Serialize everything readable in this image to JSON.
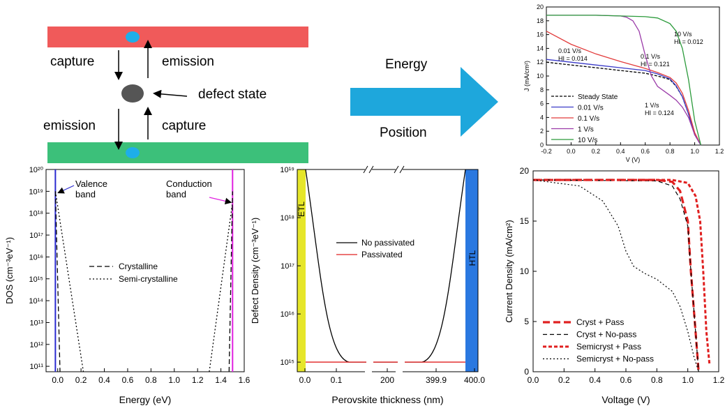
{
  "schematic": {
    "capture_top": "capture",
    "emission_top": "emission",
    "defect_label": "defect state",
    "emission_bottom": "emission",
    "capture_bottom": "capture",
    "colors": {
      "upper_band": "#f05a5a",
      "lower_band": "#3cc07a",
      "carrier": "#1eaee8",
      "defect": "#555555"
    }
  },
  "arrow_panel": {
    "label_top": "Energy",
    "label_bottom": "Position",
    "color": "#1ea7dc"
  },
  "chart_data": [
    {
      "type": "line",
      "xlabel": "V (V)",
      "ylabel": "J (mA/cm²)",
      "xlim": [
        -0.2,
        1.2
      ],
      "ylim": [
        0,
        20
      ],
      "xticks": [
        "-0.2",
        "0.0",
        "0.2",
        "0.4",
        "0.6",
        "0.8",
        "1.0",
        "1.2"
      ],
      "yticks": [
        "0",
        "2",
        "4",
        "6",
        "8",
        "10",
        "12",
        "14",
        "16",
        "18",
        "20"
      ],
      "legend": [
        "Steady State",
        "0.01 V/s",
        "0.1 V/s",
        "1 V/s",
        "10 V/s"
      ],
      "annotations": [
        {
          "rate": "0.01 V/s",
          "hi": "HI = 0.014",
          "color": "#3a3ac8"
        },
        {
          "rate": "0.1 V/s",
          "hi": "HI = 0.121",
          "color": "#e23b3b"
        },
        {
          "rate": "1 V/s",
          "hi": "HI = 0.124",
          "color": "#9a3aa8"
        },
        {
          "rate": "10 V/s",
          "hi": "HI = 0.012",
          "color": "#2a9a3a"
        }
      ],
      "series": [
        {
          "name": "Steady State",
          "color": "#000000",
          "x": [
            -0.2,
            0.0,
            0.2,
            0.4,
            0.6,
            0.7,
            0.8,
            0.85,
            0.9,
            0.95,
            1.0,
            1.05
          ],
          "y": [
            12.0,
            11.6,
            11.2,
            10.8,
            10.4,
            10.0,
            9.5,
            8.5,
            7.0,
            4.5,
            1.5,
            0.0
          ]
        },
        {
          "name": "0.01 V/s",
          "color": "#3a3ac8",
          "x": [
            -0.2,
            0.0,
            0.2,
            0.4,
            0.6,
            0.7,
            0.8,
            0.85,
            0.9,
            0.95,
            1.0,
            1.05
          ],
          "y": [
            12.4,
            12.0,
            11.6,
            11.2,
            10.8,
            10.3,
            9.6,
            8.6,
            7.0,
            4.5,
            1.5,
            0.0
          ]
        },
        {
          "name": "0.1 V/s",
          "color": "#e23b3b",
          "x": [
            -0.2,
            0.0,
            0.2,
            0.4,
            0.6,
            0.7,
            0.8,
            0.85,
            0.9,
            0.95,
            1.0,
            1.05
          ],
          "y": [
            16.5,
            14.6,
            13.2,
            12.1,
            11.1,
            10.5,
            9.8,
            9.0,
            7.5,
            5.0,
            1.8,
            0.0
          ]
        },
        {
          "name": "1 V/s",
          "color": "#9a3aa8",
          "x": [
            -0.2,
            0.0,
            0.2,
            0.4,
            0.45,
            0.5,
            0.55,
            0.6,
            0.65,
            0.7,
            0.8,
            0.85,
            0.9,
            0.95,
            1.0,
            1.05
          ],
          "y": [
            18.8,
            18.8,
            18.8,
            18.7,
            18.5,
            18.0,
            16.5,
            13.0,
            10.0,
            8.5,
            7.2,
            6.5,
            5.5,
            4.0,
            1.5,
            0.0
          ]
        },
        {
          "name": "10 V/s",
          "color": "#2a9a3a",
          "x": [
            -0.2,
            0.0,
            0.2,
            0.4,
            0.6,
            0.7,
            0.8,
            0.85,
            0.9,
            0.95,
            1.0,
            1.05
          ],
          "y": [
            18.8,
            18.8,
            18.8,
            18.7,
            18.6,
            18.4,
            17.6,
            16.5,
            14.0,
            9.5,
            3.5,
            0.0
          ]
        }
      ]
    },
    {
      "type": "line",
      "xlabel": "Energy (eV)",
      "ylabel": "DOS (cm⁻³eV⁻¹)",
      "xlim": [
        -0.1,
        1.6
      ],
      "ylim_log10": [
        10.75,
        20
      ],
      "xticks": [
        "0.0",
        "0.2",
        "0.4",
        "0.6",
        "0.8",
        "1.0",
        "1.2",
        "1.4",
        "1.6"
      ],
      "yticks": [
        "10¹¹",
        "10¹²",
        "10¹³",
        "10¹⁴",
        "10¹⁵",
        "10¹⁶",
        "10¹⁷",
        "10¹⁸",
        "10¹⁹",
        "10²⁰"
      ],
      "band_labels": [
        {
          "text": "Valence band",
          "color": "#2a2ad0",
          "edge_ev": -0.02
        },
        {
          "text": "Conduction band",
          "color": "#e020e0",
          "edge_ev": 1.5
        }
      ],
      "legend": [
        "Crystalline",
        "Semi-crystalline"
      ],
      "series": [
        {
          "name": "Crystalline",
          "x": [
            -0.02,
            0.02
          ],
          "log10_y": [
            19.0,
            10.75
          ],
          "x2": [
            1.47,
            1.5
          ],
          "log10_y2": [
            10.75,
            19.0
          ]
        },
        {
          "name": "Semi-crystalline",
          "x": [
            -0.02,
            0.22
          ],
          "log10_y": [
            19.0,
            10.75
          ],
          "x2": [
            1.3,
            1.5
          ],
          "log10_y2": [
            10.75,
            18.5
          ]
        }
      ]
    },
    {
      "type": "line",
      "xlabel": "Perovskite thickness (nm)",
      "ylabel": "Defect Density (cm⁻³eV⁻¹)",
      "ylim_log10": [
        14.8,
        19
      ],
      "xticks": [
        "0.0",
        "0.1",
        "200",
        "399.9",
        "400.0"
      ],
      "yticks": [
        "10¹⁵",
        "10¹⁶",
        "10¹⁷",
        "10¹⁸",
        "10¹⁹"
      ],
      "layers": [
        {
          "label": "ETL",
          "color": "#e6e62a"
        },
        {
          "label": "HTL",
          "color": "#2a78e0"
        }
      ],
      "legend": [
        "No passivated",
        "Passivated"
      ],
      "series": [
        {
          "name": "No passivated",
          "color": "#000000",
          "peak_log10": 19,
          "floor_log10": 15
        },
        {
          "name": "Passivated",
          "color": "#e02020",
          "floor_log10": 15
        }
      ]
    },
    {
      "type": "line",
      "xlabel": "Voltage (V)",
      "ylabel": "Current Density (mA/cm²)",
      "xlim": [
        0,
        1.2
      ],
      "ylim": [
        0,
        20
      ],
      "xticks": [
        "0.0",
        "0.2",
        "0.4",
        "0.6",
        "0.8",
        "1.0",
        "1.2"
      ],
      "yticks": [
        "0",
        "5",
        "10",
        "15",
        "20"
      ],
      "legend": [
        "Cryst + Pass",
        "Cryst + No-pass",
        "Semicryst + Pass",
        "Semicryst + No-pass"
      ],
      "series": [
        {
          "name": "Cryst + Pass",
          "color": "#e02020",
          "x": [
            0,
            0.8,
            0.9,
            0.95,
            1.0,
            1.02,
            1.05,
            1.07
          ],
          "y": [
            19.1,
            19.1,
            18.9,
            18.0,
            15.0,
            10.0,
            4.0,
            0.0
          ]
        },
        {
          "name": "Cryst + No-pass",
          "color": "#000000",
          "x": [
            0,
            0.8,
            0.9,
            0.95,
            1.0,
            1.02,
            1.05,
            1.07
          ],
          "y": [
            19.1,
            19.0,
            18.5,
            17.2,
            14.5,
            10.0,
            4.0,
            0.0
          ]
        },
        {
          "name": "Semicryst + Pass",
          "color": "#e02020",
          "x": [
            0,
            0.9,
            1.0,
            1.05,
            1.08,
            1.1,
            1.12,
            1.14
          ],
          "y": [
            19.1,
            19.1,
            18.8,
            17.5,
            15.0,
            10.0,
            4.0,
            0.8
          ]
        },
        {
          "name": "Semicryst + No-pass",
          "color": "#000000",
          "x": [
            0,
            0.3,
            0.45,
            0.55,
            0.6,
            0.65,
            0.72,
            0.8,
            0.9,
            0.95,
            1.0,
            1.04,
            1.07
          ],
          "y": [
            19.1,
            18.5,
            17.0,
            14.5,
            12.0,
            10.5,
            9.8,
            9.2,
            8.0,
            6.5,
            4.0,
            1.5,
            0.0
          ]
        }
      ]
    }
  ]
}
